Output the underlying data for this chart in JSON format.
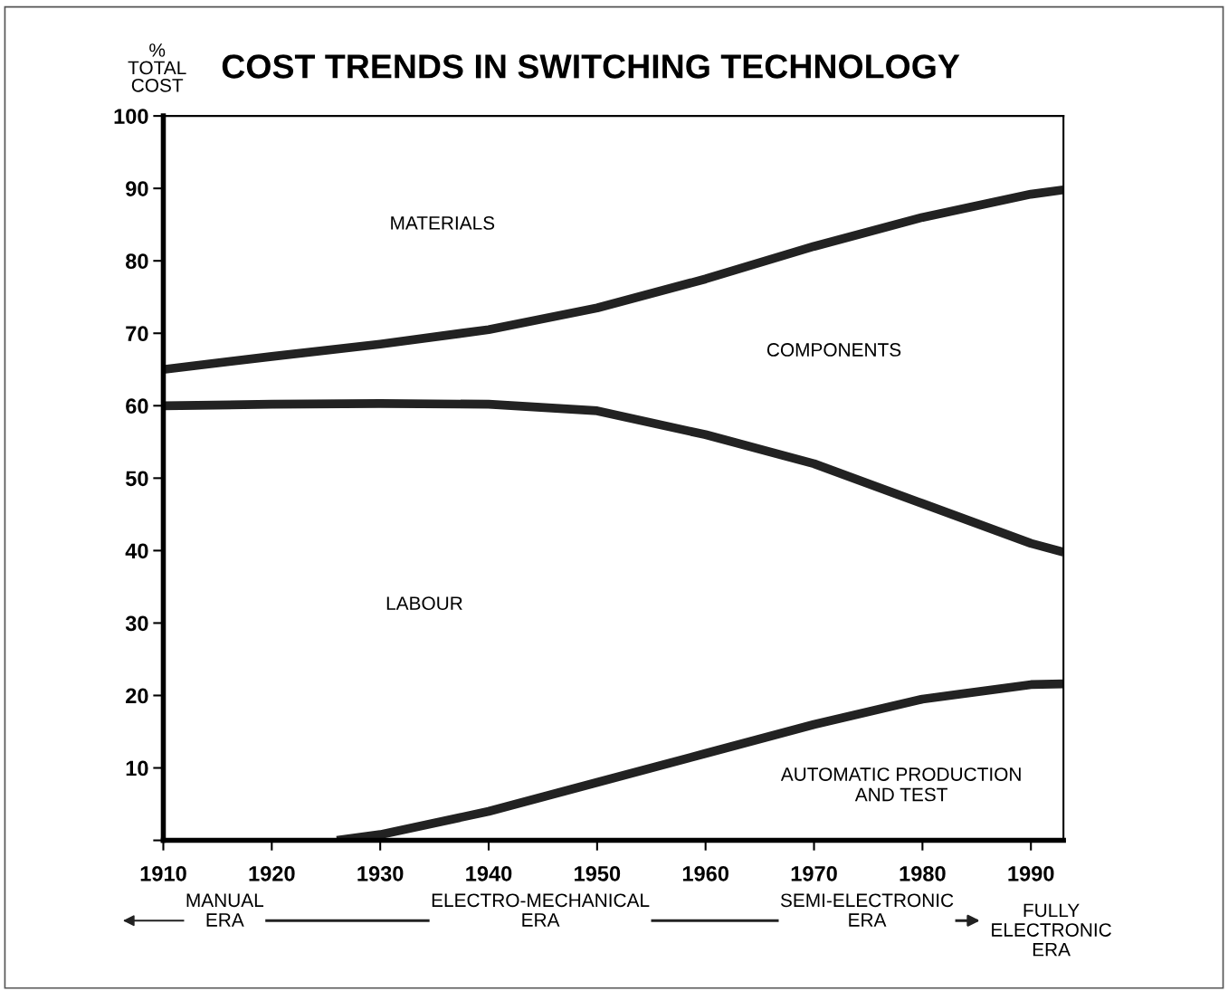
{
  "chart_data": {
    "type": "line",
    "title": "COST TRENDS IN SWITCHING TECHNOLOGY",
    "ylabel": "%\nTOTAL\nCOST",
    "series": [
      {
        "color": "#222222",
        "x": [
          1910,
          1920,
          1930,
          1940,
          1950,
          1960,
          1970,
          1980,
          1990,
          1993
        ],
        "values": [
          65,
          66.8,
          68.5,
          70.5,
          73.5,
          77.5,
          82,
          86,
          89.2,
          89.8
        ]
      },
      {
        "color": "#222222",
        "x": [
          1910,
          1920,
          1930,
          1940,
          1950,
          1960,
          1970,
          1980,
          1990,
          1993
        ],
        "values": [
          60,
          60.2,
          60.3,
          60.2,
          59.3,
          56,
          52,
          46.5,
          41,
          39.8
        ]
      },
      {
        "color": "#222222",
        "x": [
          1926,
          1930,
          1940,
          1950,
          1960,
          1970,
          1980,
          1990,
          1993
        ],
        "values": [
          0,
          0.8,
          4,
          8,
          12,
          16,
          19.5,
          21.5,
          21.6
        ]
      }
    ],
    "xlim": [
      1910,
      1993
    ],
    "ylim": [
      0,
      100
    ],
    "xticks": [
      1910,
      1920,
      1930,
      1940,
      1950,
      1960,
      1970,
      1980,
      1990
    ],
    "yticks": [
      {
        "value": 0,
        "label": null
      },
      10,
      20,
      30,
      40,
      50,
      60,
      70,
      80,
      90,
      100
    ],
    "grid": false,
    "marker": "none",
    "line_style": "solid",
    "annotations": [
      "MATERIALS",
      "COMPONENTS",
      "LABOUR",
      "AUTOMATIC PRODUCTION\nAND TEST",
      "MANUAL\nERA",
      "ELECTRO-MECHANICAL\nERA",
      "SEMI-ELECTRONIC\nERA",
      "FULLY\nELECTRONIC\nERA"
    ]
  }
}
